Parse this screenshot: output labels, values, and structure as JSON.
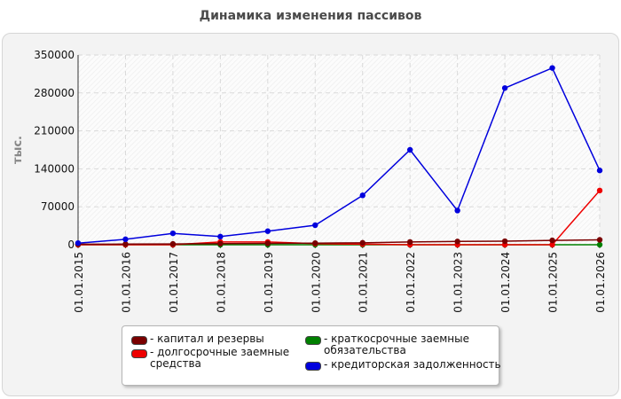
{
  "chart_data": {
    "type": "line",
    "title": "Динамика изменения пассивов",
    "ylabel": "тыс.",
    "xlabel": "",
    "categories": [
      "01.01.2015",
      "01.01.2016",
      "01.01.2017",
      "01.01.2018",
      "01.01.2019",
      "01.01.2020",
      "01.01.2021",
      "01.01.2022",
      "01.01.2023",
      "01.01.2024",
      "01.01.2025",
      "01.01.2026"
    ],
    "y_ticks": [
      "0",
      "70000",
      "140000",
      "210000",
      "280000",
      "350000"
    ],
    "ylim": [
      0,
      350000
    ],
    "grid": true,
    "legend_position": "bottom",
    "series": [
      {
        "name": "- капитал и резервы",
        "color": "#7a0000",
        "values": [
          1000,
          1200,
          1500,
          2000,
          2500,
          3000,
          3500,
          5000,
          6000,
          6500,
          8000,
          9000
        ]
      },
      {
        "name": "- долгосрочные заемные средства",
        "color": "#ee0000",
        "values": [
          0,
          0,
          0,
          5000,
          5000,
          2000,
          1000,
          0,
          0,
          0,
          0,
          100000
        ]
      },
      {
        "name": "- краткосрочные заемные обязательства",
        "color": "#008000",
        "values": [
          0,
          0,
          0,
          0,
          0,
          0,
          0,
          0,
          0,
          0,
          0,
          0
        ]
      },
      {
        "name": "- кредиторская задолженность",
        "color": "#0000dd",
        "values": [
          3000,
          10000,
          21000,
          15000,
          25000,
          36000,
          91000,
          175000,
          63000,
          289000,
          326000,
          137000
        ]
      }
    ]
  }
}
